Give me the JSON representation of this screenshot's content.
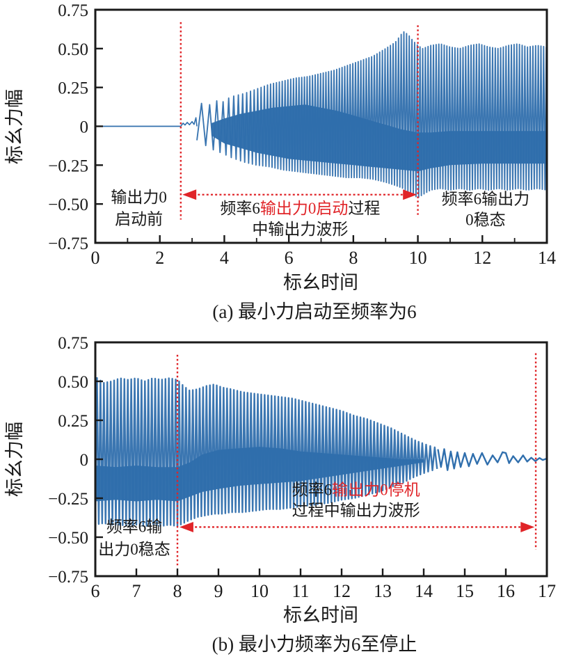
{
  "colors": {
    "wave": "#306fad",
    "band": "#2e6dab",
    "red": "#e02428",
    "axis": "#1a1a1a",
    "text": "#1a1a1a",
    "background": "#ffffff"
  },
  "chart_data": [
    {
      "id": "a",
      "type": "line",
      "caption": "(a) 最小力启动至频率为6",
      "xlabel": "标幺时间",
      "ylabel": "标幺力幅",
      "xlim": [
        0,
        14
      ],
      "ylim": [
        -0.75,
        0.75
      ],
      "x_major_ticks": [
        0,
        2,
        4,
        6,
        8,
        10,
        12,
        14
      ],
      "x_tick_labels": [
        "0",
        "2",
        "4",
        "6",
        "8",
        "10",
        "12",
        "14"
      ],
      "x_minor_ticks": [
        1,
        3,
        5,
        7,
        9,
        11,
        13
      ],
      "y_ticks": [
        0.75,
        0.5,
        0.25,
        0,
        -0.25,
        -0.5,
        -0.75
      ],
      "y_tick_labels": [
        "0.75",
        "0.50",
        "0.25",
        "0",
        "−0.25",
        "−0.50",
        "−0.75"
      ],
      "flat_segment": {
        "x1": 0,
        "x2": 2.65,
        "y": 0
      },
      "start_wiggle": [
        [
          2.65,
          0.0
        ],
        [
          2.72,
          0.02
        ],
        [
          2.78,
          0.008
        ],
        [
          2.85,
          0.025
        ],
        [
          2.92,
          0.01
        ],
        [
          3.0,
          0.03
        ],
        [
          3.06,
          0.012
        ],
        [
          3.12,
          0.055
        ],
        [
          3.15,
          0.0
        ]
      ],
      "stripes_range": [
        3.15,
        14
      ],
      "freq_profile": [
        [
          3.15,
          3.5
        ],
        [
          3.8,
          5
        ],
        [
          4.6,
          8
        ],
        [
          5.5,
          11
        ],
        [
          6.5,
          12
        ],
        [
          14,
          12
        ]
      ],
      "envelope": [
        [
          3.15,
          0.1,
          -0.09
        ],
        [
          3.3,
          0.15,
          -0.13
        ],
        [
          3.5,
          0.13,
          -0.12
        ],
        [
          3.7,
          0.17,
          -0.16
        ],
        [
          3.9,
          0.15,
          -0.17
        ],
        [
          4.2,
          0.19,
          -0.2
        ],
        [
          4.6,
          0.21,
          -0.23
        ],
        [
          5.0,
          0.24,
          -0.25
        ],
        [
          5.4,
          0.27,
          -0.26
        ],
        [
          5.8,
          0.29,
          -0.28
        ],
        [
          6.2,
          0.31,
          -0.29
        ],
        [
          6.6,
          0.32,
          -0.3
        ],
        [
          7.0,
          0.34,
          -0.31
        ],
        [
          7.4,
          0.36,
          -0.32
        ],
        [
          7.8,
          0.39,
          -0.33
        ],
        [
          8.2,
          0.42,
          -0.33
        ],
        [
          8.6,
          0.45,
          -0.34
        ],
        [
          9.0,
          0.5,
          -0.36
        ],
        [
          9.3,
          0.54,
          -0.38
        ],
        [
          9.55,
          0.61,
          -0.4
        ],
        [
          9.7,
          0.59,
          -0.42
        ],
        [
          9.85,
          0.55,
          -0.44
        ],
        [
          10.0,
          0.52,
          -0.46
        ],
        [
          10.15,
          0.5,
          -0.44
        ],
        [
          10.4,
          0.52,
          -0.41
        ],
        [
          10.7,
          0.53,
          -0.4
        ],
        [
          11.0,
          0.51,
          -0.41
        ],
        [
          11.3,
          0.5,
          -0.4
        ],
        [
          11.6,
          0.52,
          -0.41
        ],
        [
          11.9,
          0.53,
          -0.4
        ],
        [
          12.2,
          0.51,
          -0.41
        ],
        [
          12.5,
          0.5,
          -0.4
        ],
        [
          12.8,
          0.52,
          -0.41
        ],
        [
          13.1,
          0.53,
          -0.4
        ],
        [
          13.4,
          0.51,
          -0.41
        ],
        [
          13.7,
          0.52,
          -0.4
        ],
        [
          14.0,
          0.51,
          -0.41
        ]
      ],
      "band": [
        [
          3.6,
          0.02,
          -0.06
        ],
        [
          4.0,
          0.05,
          -0.11
        ],
        [
          4.5,
          0.08,
          -0.14
        ],
        [
          5.0,
          0.1,
          -0.17
        ],
        [
          5.5,
          0.12,
          -0.19
        ],
        [
          6.0,
          0.13,
          -0.21
        ],
        [
          6.5,
          0.14,
          -0.22
        ],
        [
          7.0,
          0.12,
          -0.23
        ],
        [
          7.5,
          0.1,
          -0.24
        ],
        [
          8.0,
          0.07,
          -0.25
        ],
        [
          8.5,
          0.04,
          -0.26
        ],
        [
          9.0,
          0.01,
          -0.27
        ],
        [
          9.5,
          -0.02,
          -0.28
        ],
        [
          10.0,
          -0.04,
          -0.29
        ],
        [
          10.4,
          -0.04,
          -0.27
        ],
        [
          11.0,
          -0.03,
          -0.25
        ],
        [
          12.0,
          -0.03,
          -0.24
        ],
        [
          13.0,
          -0.03,
          -0.24
        ],
        [
          14.0,
          -0.03,
          -0.24
        ]
      ],
      "red_vlines": [
        {
          "x": 2.65,
          "y1": 0.67,
          "y2": -0.6
        },
        {
          "x": 10.0,
          "y1": 0.65,
          "y2": -0.57
        }
      ],
      "arrow": {
        "y": -0.44,
        "x1": 2.7,
        "x2": 9.97
      },
      "annotations": [
        {
          "x": 1.35,
          "lines": [
            {
              "y": -0.455,
              "segments": [
                {
                  "t": "输出力0",
                  "c": "#1a1a1a"
                }
              ]
            },
            {
              "y": -0.595,
              "segments": [
                {
                  "t": "启动前",
                  "c": "#1a1a1a"
                }
              ]
            }
          ]
        },
        {
          "x": 6.35,
          "lines": [
            {
              "y": -0.525,
              "segments": [
                {
                  "t": "频率6",
                  "c": "#1a1a1a"
                },
                {
                  "t": "输出力0启动",
                  "c": "#e02428"
                },
                {
                  "t": "过程",
                  "c": "#1a1a1a"
                }
              ]
            },
            {
              "y": -0.66,
              "segments": [
                {
                  "t": "中输出力波形",
                  "c": "#1a1a1a"
                }
              ]
            }
          ]
        },
        {
          "x": 12.1,
          "lines": [
            {
              "y": -0.465,
              "segments": [
                {
                  "t": "频率6输出力",
                  "c": "#1a1a1a"
                }
              ]
            },
            {
              "y": -0.6,
              "segments": [
                {
                  "t": "0稳态",
                  "c": "#1a1a1a"
                }
              ]
            }
          ]
        }
      ]
    },
    {
      "id": "b",
      "type": "line",
      "caption": "(b) 最小力频率为6至停止",
      "xlabel": "标幺时间",
      "ylabel": "标幺力幅",
      "xlim": [
        6,
        17
      ],
      "ylim": [
        -0.75,
        0.75
      ],
      "x_major_ticks": [
        6,
        7,
        8,
        9,
        10,
        11,
        12,
        13,
        14,
        15,
        16,
        17
      ],
      "x_tick_labels": [
        "6",
        "7",
        "8",
        "9",
        "10",
        "11",
        "12",
        "13",
        "14",
        "15",
        "16",
        "17"
      ],
      "x_minor_ticks": [],
      "y_ticks": [
        0.75,
        0.5,
        0.25,
        0,
        -0.25,
        -0.5,
        -0.75
      ],
      "y_tick_labels": [
        "0.75",
        "0.50",
        "0.25",
        "0",
        "−0.25",
        "−0.50",
        "−0.75"
      ],
      "stripes_range": [
        6,
        14.35
      ],
      "freq_profile": [
        [
          6,
          12
        ],
        [
          13.8,
          12
        ],
        [
          14.35,
          8
        ]
      ],
      "envelope": [
        [
          6.0,
          0.53,
          -0.42
        ],
        [
          6.2,
          0.49,
          -0.41
        ],
        [
          6.4,
          0.5,
          -0.42
        ],
        [
          6.6,
          0.52,
          -0.42
        ],
        [
          6.8,
          0.51,
          -0.43
        ],
        [
          7.0,
          0.52,
          -0.42
        ],
        [
          7.2,
          0.5,
          -0.43
        ],
        [
          7.4,
          0.52,
          -0.42
        ],
        [
          7.6,
          0.51,
          -0.43
        ],
        [
          7.8,
          0.52,
          -0.42
        ],
        [
          8.0,
          0.51,
          -0.43
        ],
        [
          8.15,
          0.47,
          -0.41
        ],
        [
          8.3,
          0.44,
          -0.39
        ],
        [
          8.5,
          0.45,
          -0.37
        ],
        [
          8.7,
          0.47,
          -0.36
        ],
        [
          8.9,
          0.48,
          -0.35
        ],
        [
          9.1,
          0.46,
          -0.35
        ],
        [
          9.3,
          0.45,
          -0.34
        ],
        [
          9.6,
          0.43,
          -0.34
        ],
        [
          9.9,
          0.42,
          -0.33
        ],
        [
          10.2,
          0.41,
          -0.32
        ],
        [
          10.5,
          0.4,
          -0.32
        ],
        [
          10.8,
          0.39,
          -0.31
        ],
        [
          11.1,
          0.37,
          -0.3
        ],
        [
          11.4,
          0.35,
          -0.29
        ],
        [
          11.7,
          0.33,
          -0.28
        ],
        [
          12.0,
          0.31,
          -0.26
        ],
        [
          12.3,
          0.28,
          -0.25
        ],
        [
          12.6,
          0.26,
          -0.23
        ],
        [
          12.9,
          0.23,
          -0.21
        ],
        [
          13.2,
          0.2,
          -0.18
        ],
        [
          13.5,
          0.16,
          -0.15
        ],
        [
          13.8,
          0.12,
          -0.11
        ],
        [
          14.1,
          0.09,
          -0.08
        ],
        [
          14.35,
          0.07,
          -0.06
        ]
      ],
      "band": [
        [
          6.0,
          -0.04,
          -0.27
        ],
        [
          6.5,
          -0.05,
          -0.26
        ],
        [
          7.0,
          -0.04,
          -0.27
        ],
        [
          7.5,
          -0.05,
          -0.26
        ],
        [
          8.0,
          -0.05,
          -0.27
        ],
        [
          8.3,
          -0.02,
          -0.24
        ],
        [
          8.6,
          0.03,
          -0.21
        ],
        [
          9.0,
          0.06,
          -0.19
        ],
        [
          9.5,
          0.07,
          -0.17
        ],
        [
          10.0,
          0.08,
          -0.16
        ],
        [
          10.5,
          0.07,
          -0.15
        ],
        [
          11.0,
          0.05,
          -0.14
        ],
        [
          11.5,
          0.04,
          -0.12
        ],
        [
          12.0,
          0.03,
          -0.1
        ],
        [
          12.5,
          0.02,
          -0.08
        ],
        [
          13.0,
          0.01,
          -0.06
        ],
        [
          13.5,
          0.0,
          -0.04
        ],
        [
          14.0,
          0.0,
          -0.02
        ]
      ],
      "tail": [
        [
          14.35,
          0.06
        ],
        [
          14.42,
          -0.05
        ],
        [
          14.5,
          0.065
        ],
        [
          14.58,
          -0.07
        ],
        [
          14.66,
          0.05
        ],
        [
          14.74,
          -0.06
        ],
        [
          14.82,
          0.045
        ],
        [
          14.9,
          -0.05
        ],
        [
          15.0,
          0.04
        ],
        [
          15.1,
          -0.045
        ],
        [
          15.2,
          0.035
        ],
        [
          15.3,
          -0.03
        ],
        [
          15.42,
          0.04
        ],
        [
          15.55,
          -0.035
        ],
        [
          15.68,
          0.025
        ],
        [
          15.8,
          -0.02
        ],
        [
          15.92,
          0.045
        ],
        [
          16.0,
          0.04
        ],
        [
          16.08,
          -0.025
        ],
        [
          16.18,
          0.02
        ],
        [
          16.3,
          -0.02
        ],
        [
          16.42,
          0.025
        ],
        [
          16.52,
          -0.015
        ],
        [
          16.62,
          0.01
        ],
        [
          16.72,
          -0.012
        ],
        [
          16.82,
          0.008
        ],
        [
          16.9,
          -0.005
        ],
        [
          17.0,
          0.005
        ]
      ],
      "red_vlines": [
        {
          "x": 8.0,
          "y1": 0.67,
          "y2": -0.68
        },
        {
          "x": 16.73,
          "y1": 0.68,
          "y2": -0.58
        }
      ],
      "arrow": {
        "y": -0.435,
        "x1": 8.05,
        "x2": 16.7
      },
      "annotations": [
        {
          "x": 6.95,
          "lines": [
            {
              "y": -0.43,
              "segments": [
                {
                  "t": "频率6输",
                  "c": "#1a1a1a"
                }
              ]
            },
            {
              "y": -0.575,
              "segments": [
                {
                  "t": "出力0稳态",
                  "c": "#1a1a1a"
                }
              ]
            }
          ]
        },
        {
          "x": 12.35,
          "lines": [
            {
              "y": -0.195,
              "segments": [
                {
                  "t": "频率6",
                  "c": "#1a1a1a"
                },
                {
                  "t": "输出力0停机",
                  "c": "#e02428"
                }
              ]
            },
            {
              "y": -0.325,
              "segments": [
                {
                  "t": "过程中输出力波形",
                  "c": "#1a1a1a"
                }
              ]
            }
          ]
        }
      ]
    }
  ]
}
